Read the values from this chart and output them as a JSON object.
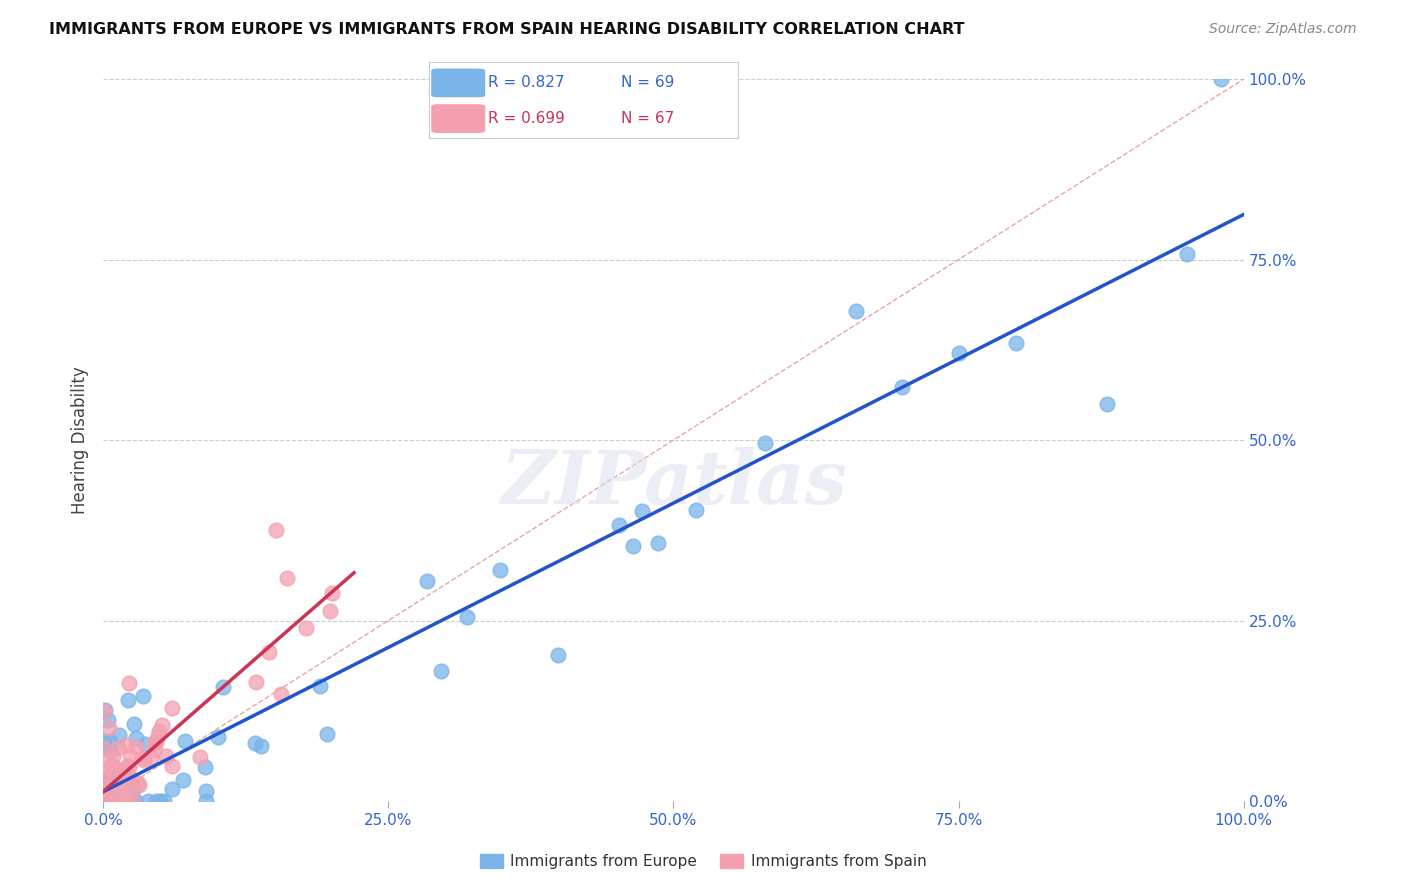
{
  "title": "IMMIGRANTS FROM EUROPE VS IMMIGRANTS FROM SPAIN HEARING DISABILITY CORRELATION CHART",
  "source": "Source: ZipAtlas.com",
  "ylabel": "Hearing Disability",
  "y_tick_labels": [
    "0.0%",
    "25.0%",
    "50.0%",
    "75.0%",
    "100.0%"
  ],
  "y_tick_values": [
    0,
    25,
    50,
    75,
    100
  ],
  "x_tick_labels": [
    "0.0%",
    "25.0%",
    "50.0%",
    "75.0%",
    "100.0%"
  ],
  "x_tick_values": [
    0,
    25,
    50,
    75,
    100
  ],
  "legend_europe_r": "R = 0.827",
  "legend_europe_n": "N = 69",
  "legend_spain_r": "R = 0.699",
  "legend_spain_n": "N = 67",
  "europe_color": "#7ab4e8",
  "spain_color": "#f4a0b0",
  "europe_line_color": "#2255cc",
  "spain_line_color": "#cc3355",
  "diagonal_color": "#ddaaaa",
  "watermark": "ZIPatlas",
  "europe_N": 69,
  "spain_N": 67
}
